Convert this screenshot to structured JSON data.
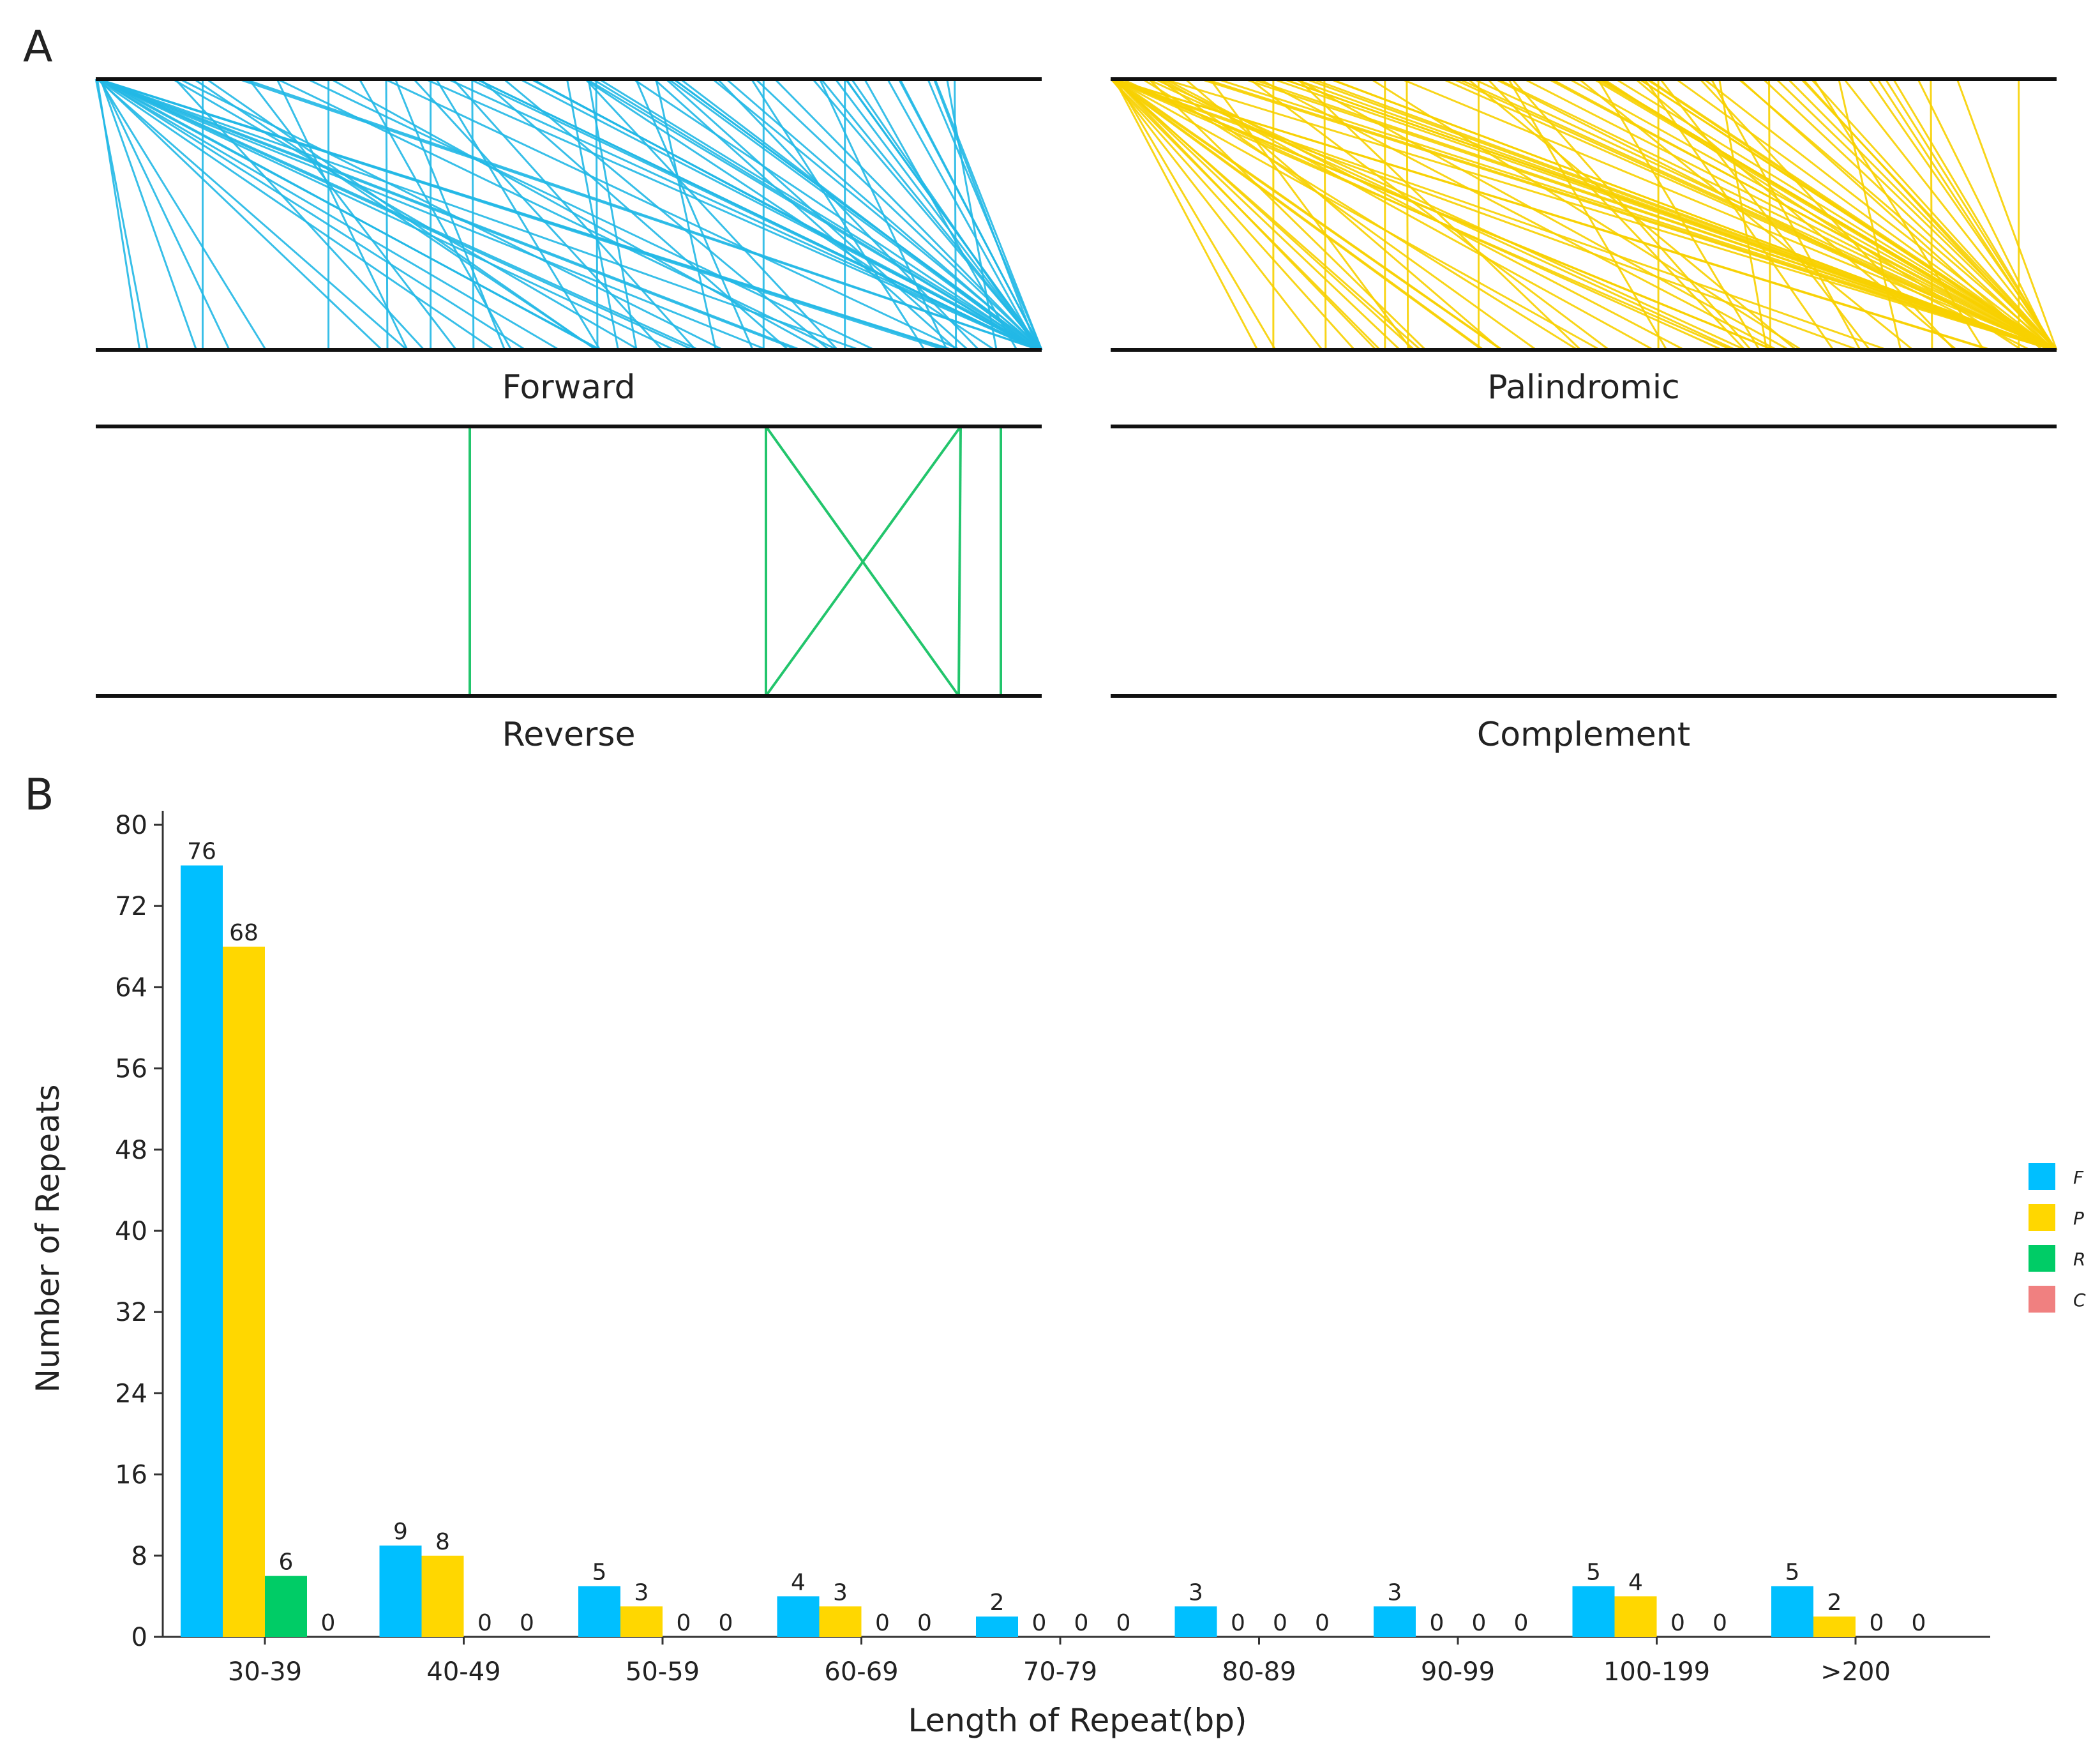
{
  "panels": {
    "a_label": "A",
    "b_label": "B"
  },
  "repeat_maps": {
    "type": "repeat-map",
    "tracks": [
      {
        "key": "forward",
        "label": "Forward",
        "color": "#22b8e6",
        "has_lines": true
      },
      {
        "key": "palindromic",
        "label": "Palindromic",
        "color": "#f7d000",
        "has_lines": true
      },
      {
        "key": "reverse",
        "label": "Reverse",
        "color": "#22c56c",
        "has_lines": true
      },
      {
        "key": "complement",
        "label": "Complement",
        "color": "#e98a84",
        "has_lines": false
      }
    ]
  },
  "chart_data": {
    "type": "bar",
    "title": "",
    "categories": [
      "30-39",
      "40-49",
      "50-59",
      "60-69",
      "70-79",
      "80-89",
      "90-99",
      "100-199",
      ">200"
    ],
    "series": [
      {
        "name": "F",
        "color": "#00bfff",
        "values": [
          76,
          9,
          5,
          4,
          2,
          3,
          3,
          5,
          5
        ]
      },
      {
        "name": "P",
        "color": "#ffd700",
        "values": [
          68,
          8,
          3,
          3,
          0,
          0,
          0,
          4,
          2
        ]
      },
      {
        "name": "R",
        "color": "#00cc66",
        "values": [
          6,
          0,
          0,
          0,
          0,
          0,
          0,
          0,
          0
        ]
      },
      {
        "name": "C",
        "color": "#f08080",
        "values": [
          0,
          0,
          0,
          0,
          0,
          0,
          0,
          0,
          0
        ]
      }
    ],
    "xlabel": "Length of Repeat(bp)",
    "ylabel": "Number of Repeats",
    "ylim": [
      0,
      80
    ],
    "yticks": [
      0,
      8,
      16,
      24,
      32,
      40,
      48,
      56,
      64,
      72,
      80
    ],
    "grid": false,
    "legend": "right"
  }
}
